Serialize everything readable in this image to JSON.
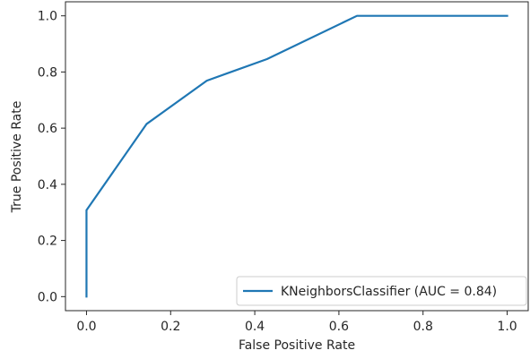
{
  "chart_data": {
    "type": "line",
    "title": "",
    "xlabel": "False Positive Rate",
    "ylabel": "True Positive Rate",
    "xlim": [
      -0.05,
      1.05
    ],
    "ylim": [
      -0.05,
      1.05
    ],
    "x_ticks": [
      0.0,
      0.2,
      0.4,
      0.6,
      0.8,
      1.0
    ],
    "x_tick_labels": [
      "0.0",
      "0.2",
      "0.4",
      "0.6",
      "0.8",
      "1.0"
    ],
    "y_ticks": [
      0.0,
      0.2,
      0.4,
      0.6,
      0.8,
      1.0
    ],
    "y_tick_labels": [
      "0.0",
      "0.2",
      "0.4",
      "0.6",
      "0.8",
      "1.0"
    ],
    "grid": false,
    "legend_position": "lower-right",
    "series": [
      {
        "name": "KNeighborsClassifier (AUC = 0.84)",
        "color": "#1f77b4",
        "x": [
          0.0,
          0.0,
          0.143,
          0.286,
          0.429,
          0.643,
          1.0
        ],
        "y": [
          0.0,
          0.308,
          0.615,
          0.769,
          0.846,
          1.0,
          1.0
        ]
      }
    ]
  }
}
